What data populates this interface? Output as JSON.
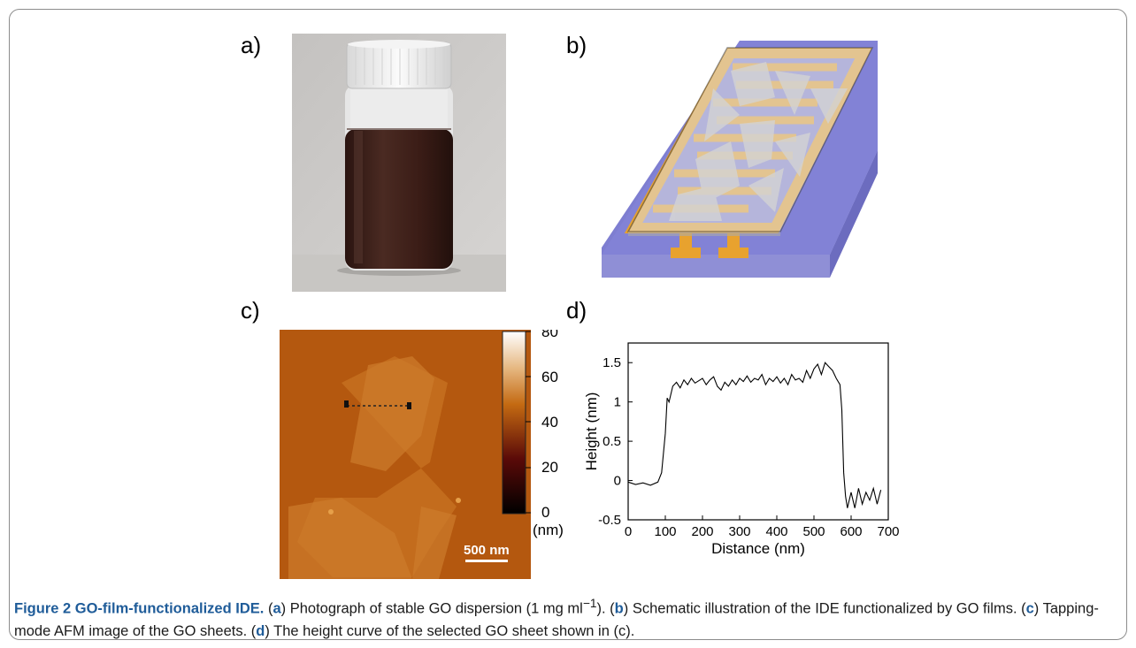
{
  "panels": {
    "a": {
      "label": "a)"
    },
    "b": {
      "label": "b)"
    },
    "c": {
      "label": "c)",
      "scale_bar": "500 nm",
      "colorbar_ticks": [
        "80",
        "60",
        "40",
        "20",
        "0"
      ],
      "colorbar_unit": "(nm)"
    },
    "d": {
      "label": "d)"
    }
  },
  "chart_data": {
    "type": "line",
    "title": "",
    "xlabel": "Distance (nm)",
    "ylabel": "Height (nm)",
    "xlim": [
      0,
      700
    ],
    "ylim": [
      -0.5,
      1.75
    ],
    "x_ticks": [
      "0",
      "100",
      "200",
      "300",
      "400",
      "500",
      "600",
      "700"
    ],
    "y_ticks": [
      "-0.5",
      "0",
      "0.5",
      "1",
      "1.5"
    ],
    "series": [
      {
        "x": [
          0,
          20,
          40,
          60,
          80,
          90,
          100,
          105,
          110,
          120,
          130,
          140,
          150,
          160,
          170,
          180,
          190,
          200,
          210,
          220,
          230,
          240,
          250,
          260,
          270,
          280,
          290,
          300,
          310,
          320,
          330,
          340,
          350,
          360,
          370,
          380,
          390,
          400,
          410,
          420,
          430,
          440,
          450,
          460,
          470,
          480,
          490,
          500,
          510,
          520,
          530,
          540,
          550,
          560,
          570,
          575,
          580,
          585,
          590,
          595,
          600,
          610,
          620,
          630,
          640,
          650,
          660,
          670,
          680
        ],
        "y": [
          -0.02,
          -0.05,
          -0.03,
          -0.06,
          -0.02,
          0.1,
          0.6,
          1.05,
          1.0,
          1.2,
          1.25,
          1.18,
          1.28,
          1.22,
          1.3,
          1.24,
          1.27,
          1.3,
          1.22,
          1.28,
          1.32,
          1.2,
          1.15,
          1.25,
          1.2,
          1.28,
          1.22,
          1.3,
          1.26,
          1.33,
          1.25,
          1.3,
          1.28,
          1.35,
          1.22,
          1.3,
          1.26,
          1.32,
          1.24,
          1.3,
          1.22,
          1.35,
          1.28,
          1.3,
          1.25,
          1.4,
          1.3,
          1.42,
          1.48,
          1.35,
          1.5,
          1.45,
          1.4,
          1.3,
          1.22,
          0.9,
          0.1,
          -0.2,
          -0.35,
          -0.25,
          -0.15,
          -0.35,
          -0.1,
          -0.3,
          -0.15,
          -0.25,
          -0.1,
          -0.3,
          -0.12
        ]
      }
    ]
  },
  "caption": {
    "title": "Figure 2 GO-film-functionalized IDE.",
    "p1": " (",
    "a": "a",
    "p2": ") Photograph of stable GO dispersion (1 mg ml",
    "sup": "−1",
    "p3": "). (",
    "b": "b",
    "p4": ") Schematic illustration of the IDE functionalized by GO films. (",
    "c": "c",
    "p5": ") Tapping-mode AFM image of the GO sheets. (",
    "d": "d",
    "p6": ") The height curve of the selected GO sheet shown in (c)."
  }
}
